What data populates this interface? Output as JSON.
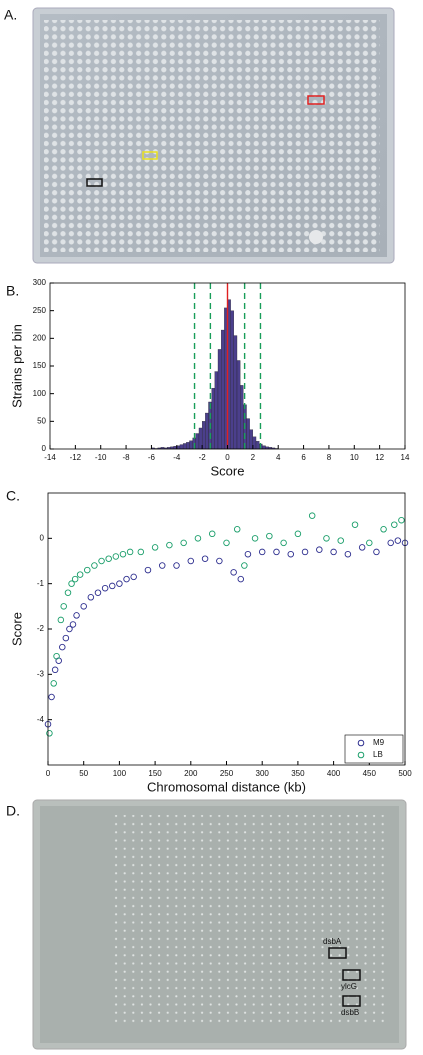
{
  "panel_labels": [
    "A.",
    "B.",
    "C.",
    "D."
  ],
  "plate_annotations": [
    "dsbA",
    "ylcG",
    "dsbB"
  ],
  "chart_data": [
    {
      "type": "histogram",
      "xlabel": "Score",
      "ylabel": "Strains per bin",
      "color": "#4b3f8c",
      "bins": [
        -6,
        -5.75,
        -5.5,
        -5.25,
        -5,
        -4.75,
        -4.5,
        -4.25,
        -4,
        -3.75,
        -3.5,
        -3.25,
        -3,
        -2.75,
        -2.5,
        -2.25,
        -2,
        -1.75,
        -1.5,
        -1.25,
        -1,
        -0.75,
        -0.5,
        -0.25,
        0,
        0.25,
        0.5,
        0.75,
        1,
        1.25,
        1.5,
        1.75,
        2,
        2.25,
        2.5,
        2.75,
        3,
        3.25,
        3.5,
        3.75,
        4
      ],
      "counts": [
        2,
        1,
        2,
        3,
        2,
        3,
        4,
        5,
        6,
        8,
        10,
        12,
        15,
        20,
        28,
        38,
        50,
        65,
        85,
        110,
        140,
        180,
        215,
        255,
        270,
        250,
        205,
        160,
        115,
        80,
        55,
        35,
        22,
        14,
        9,
        6,
        4,
        3,
        2,
        1
      ],
      "xlim": [
        -14,
        14
      ],
      "xticks": [
        -14,
        -12,
        -10,
        -8,
        -6,
        -4,
        -2,
        0,
        2,
        4,
        6,
        8,
        10,
        12,
        14
      ],
      "ylim": [
        0,
        300
      ],
      "yticks": [
        0,
        50,
        100,
        150,
        200,
        250,
        300
      ],
      "reference_lines": [
        {
          "value": 0,
          "color": "#e02020",
          "style": "solid"
        },
        {
          "value": -2.6,
          "color": "#1a9e5a",
          "style": "dashed"
        },
        {
          "value": -1.35,
          "color": "#1a9e5a",
          "style": "dashed"
        },
        {
          "value": 1.35,
          "color": "#1a9e5a",
          "style": "dashed"
        },
        {
          "value": 2.6,
          "color": "#1a9e5a",
          "style": "dashed"
        }
      ]
    },
    {
      "type": "scatter",
      "xlabel": "Chromosomal distance (kb)",
      "ylabel": "Score",
      "xlim": [
        0,
        500
      ],
      "xticks": [
        0,
        50,
        100,
        150,
        200,
        250,
        300,
        350,
        400,
        450,
        500
      ],
      "ylim": [
        -5,
        1
      ],
      "yticks": [
        -4,
        -3,
        -2,
        -1,
        0
      ],
      "legend": "lower-right",
      "series": [
        {
          "name": "M9",
          "color": "#2e2f8f",
          "x": [
            0,
            5,
            10,
            15,
            20,
            25,
            30,
            35,
            40,
            50,
            60,
            70,
            80,
            90,
            100,
            110,
            120,
            140,
            160,
            180,
            200,
            220,
            240,
            260,
            270,
            280,
            300,
            320,
            340,
            360,
            380,
            400,
            420,
            440,
            460,
            480,
            490,
            500
          ],
          "values": [
            -4.1,
            -3.5,
            -2.9,
            -2.7,
            -2.4,
            -2.2,
            -2.0,
            -1.9,
            -1.7,
            -1.5,
            -1.3,
            -1.2,
            -1.1,
            -1.05,
            -1.0,
            -0.9,
            -0.85,
            -0.7,
            -0.6,
            -0.6,
            -0.5,
            -0.45,
            -0.5,
            -0.75,
            -0.9,
            -0.35,
            -0.3,
            -0.3,
            -0.35,
            -0.3,
            -0.25,
            -0.3,
            -0.35,
            -0.2,
            -0.3,
            -0.1,
            -0.05,
            -0.1
          ]
        },
        {
          "name": "LB",
          "color": "#1a9e6a",
          "x": [
            2,
            8,
            12,
            18,
            22,
            28,
            33,
            38,
            45,
            55,
            65,
            75,
            85,
            95,
            105,
            115,
            130,
            150,
            170,
            190,
            210,
            230,
            250,
            265,
            275,
            290,
            310,
            330,
            350,
            370,
            390,
            410,
            430,
            450,
            470,
            485,
            495
          ],
          "values": [
            -4.3,
            -3.2,
            -2.6,
            -1.8,
            -1.5,
            -1.2,
            -1.0,
            -0.9,
            -0.8,
            -0.7,
            -0.6,
            -0.5,
            -0.45,
            -0.4,
            -0.35,
            -0.3,
            -0.3,
            -0.2,
            -0.15,
            -0.1,
            0.0,
            0.1,
            -0.1,
            0.2,
            -0.6,
            0.0,
            0.05,
            -0.1,
            0.1,
            0.5,
            0.0,
            -0.05,
            0.3,
            -0.1,
            0.2,
            0.3,
            0.4
          ]
        }
      ]
    }
  ]
}
